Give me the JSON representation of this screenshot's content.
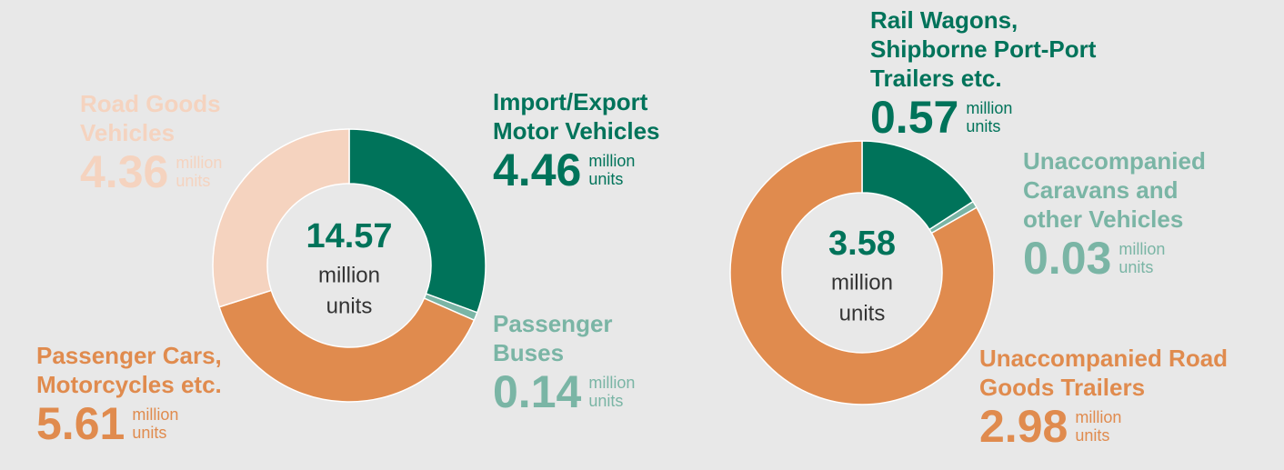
{
  "chart_data": [
    {
      "type": "pie",
      "categories": [
        "Import/Export Motor Vehicles",
        "Passenger Buses",
        "Passenger Cars, Motorcycles etc.",
        "Road Goods Vehicles"
      ],
      "values": [
        4.46,
        0.14,
        5.61,
        4.36
      ],
      "colors": [
        "#00735a",
        "#7ab5a5",
        "#e08b4e",
        "#f5d3bf"
      ],
      "total": 14.57,
      "unit_lines": [
        "million",
        "units"
      ]
    },
    {
      "type": "pie",
      "categories": [
        "Rail Wagons, Shipborne Port-Port Trailers etc.",
        "Unaccompanied Caravans and other Vehicles",
        "Unaccompanied Road Goods Trailers"
      ],
      "values": [
        0.57,
        0.03,
        2.98
      ],
      "colors": [
        "#00735a",
        "#7ab5a5",
        "#e08b4e"
      ],
      "total": 3.58,
      "unit_lines": [
        "million",
        "units"
      ]
    }
  ]
}
